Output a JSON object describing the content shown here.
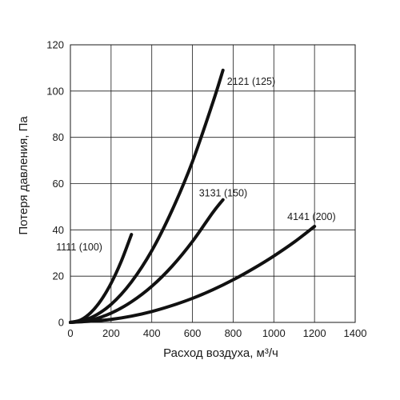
{
  "chart_data": {
    "type": "line",
    "xlabel": "Расход воздуха, м³/ч",
    "ylabel": "Потеря давления, Па",
    "xlim": [
      0,
      1400
    ],
    "ylim": [
      0,
      120
    ],
    "xticks": [
      0,
      200,
      400,
      600,
      800,
      1000,
      1200,
      1400
    ],
    "yticks": [
      0,
      20,
      40,
      60,
      80,
      100,
      120
    ],
    "grid": true,
    "legend": "none",
    "series": [
      {
        "name": "1111 (100)",
        "x": [
          0,
          50,
          100,
          150,
          200,
          250,
          300
        ],
        "y": [
          0,
          1.0,
          4.2,
          9.5,
          16.9,
          26.4,
          38
        ]
      },
      {
        "name": "2121 (125)",
        "x": [
          0,
          100,
          200,
          300,
          400,
          500,
          600,
          700,
          750
        ],
        "y": [
          0,
          2.0,
          7.8,
          17.5,
          31.0,
          48.5,
          69.5,
          95.0,
          109
        ]
      },
      {
        "name": "3131 (150)",
        "x": [
          0,
          100,
          200,
          300,
          400,
          500,
          600,
          700,
          750
        ],
        "y": [
          0,
          1.0,
          4.0,
          8.9,
          15.6,
          24.3,
          35.0,
          47.5,
          53
        ]
      },
      {
        "name": "4141 (200)",
        "x": [
          0,
          100,
          200,
          300,
          400,
          500,
          600,
          700,
          800,
          900,
          1000,
          1100,
          1200
        ],
        "y": [
          0,
          0.5,
          1.3,
          2.7,
          4.7,
          7.3,
          10.4,
          14.1,
          18.4,
          23.3,
          28.7,
          34.7,
          41.5
        ]
      }
    ]
  }
}
